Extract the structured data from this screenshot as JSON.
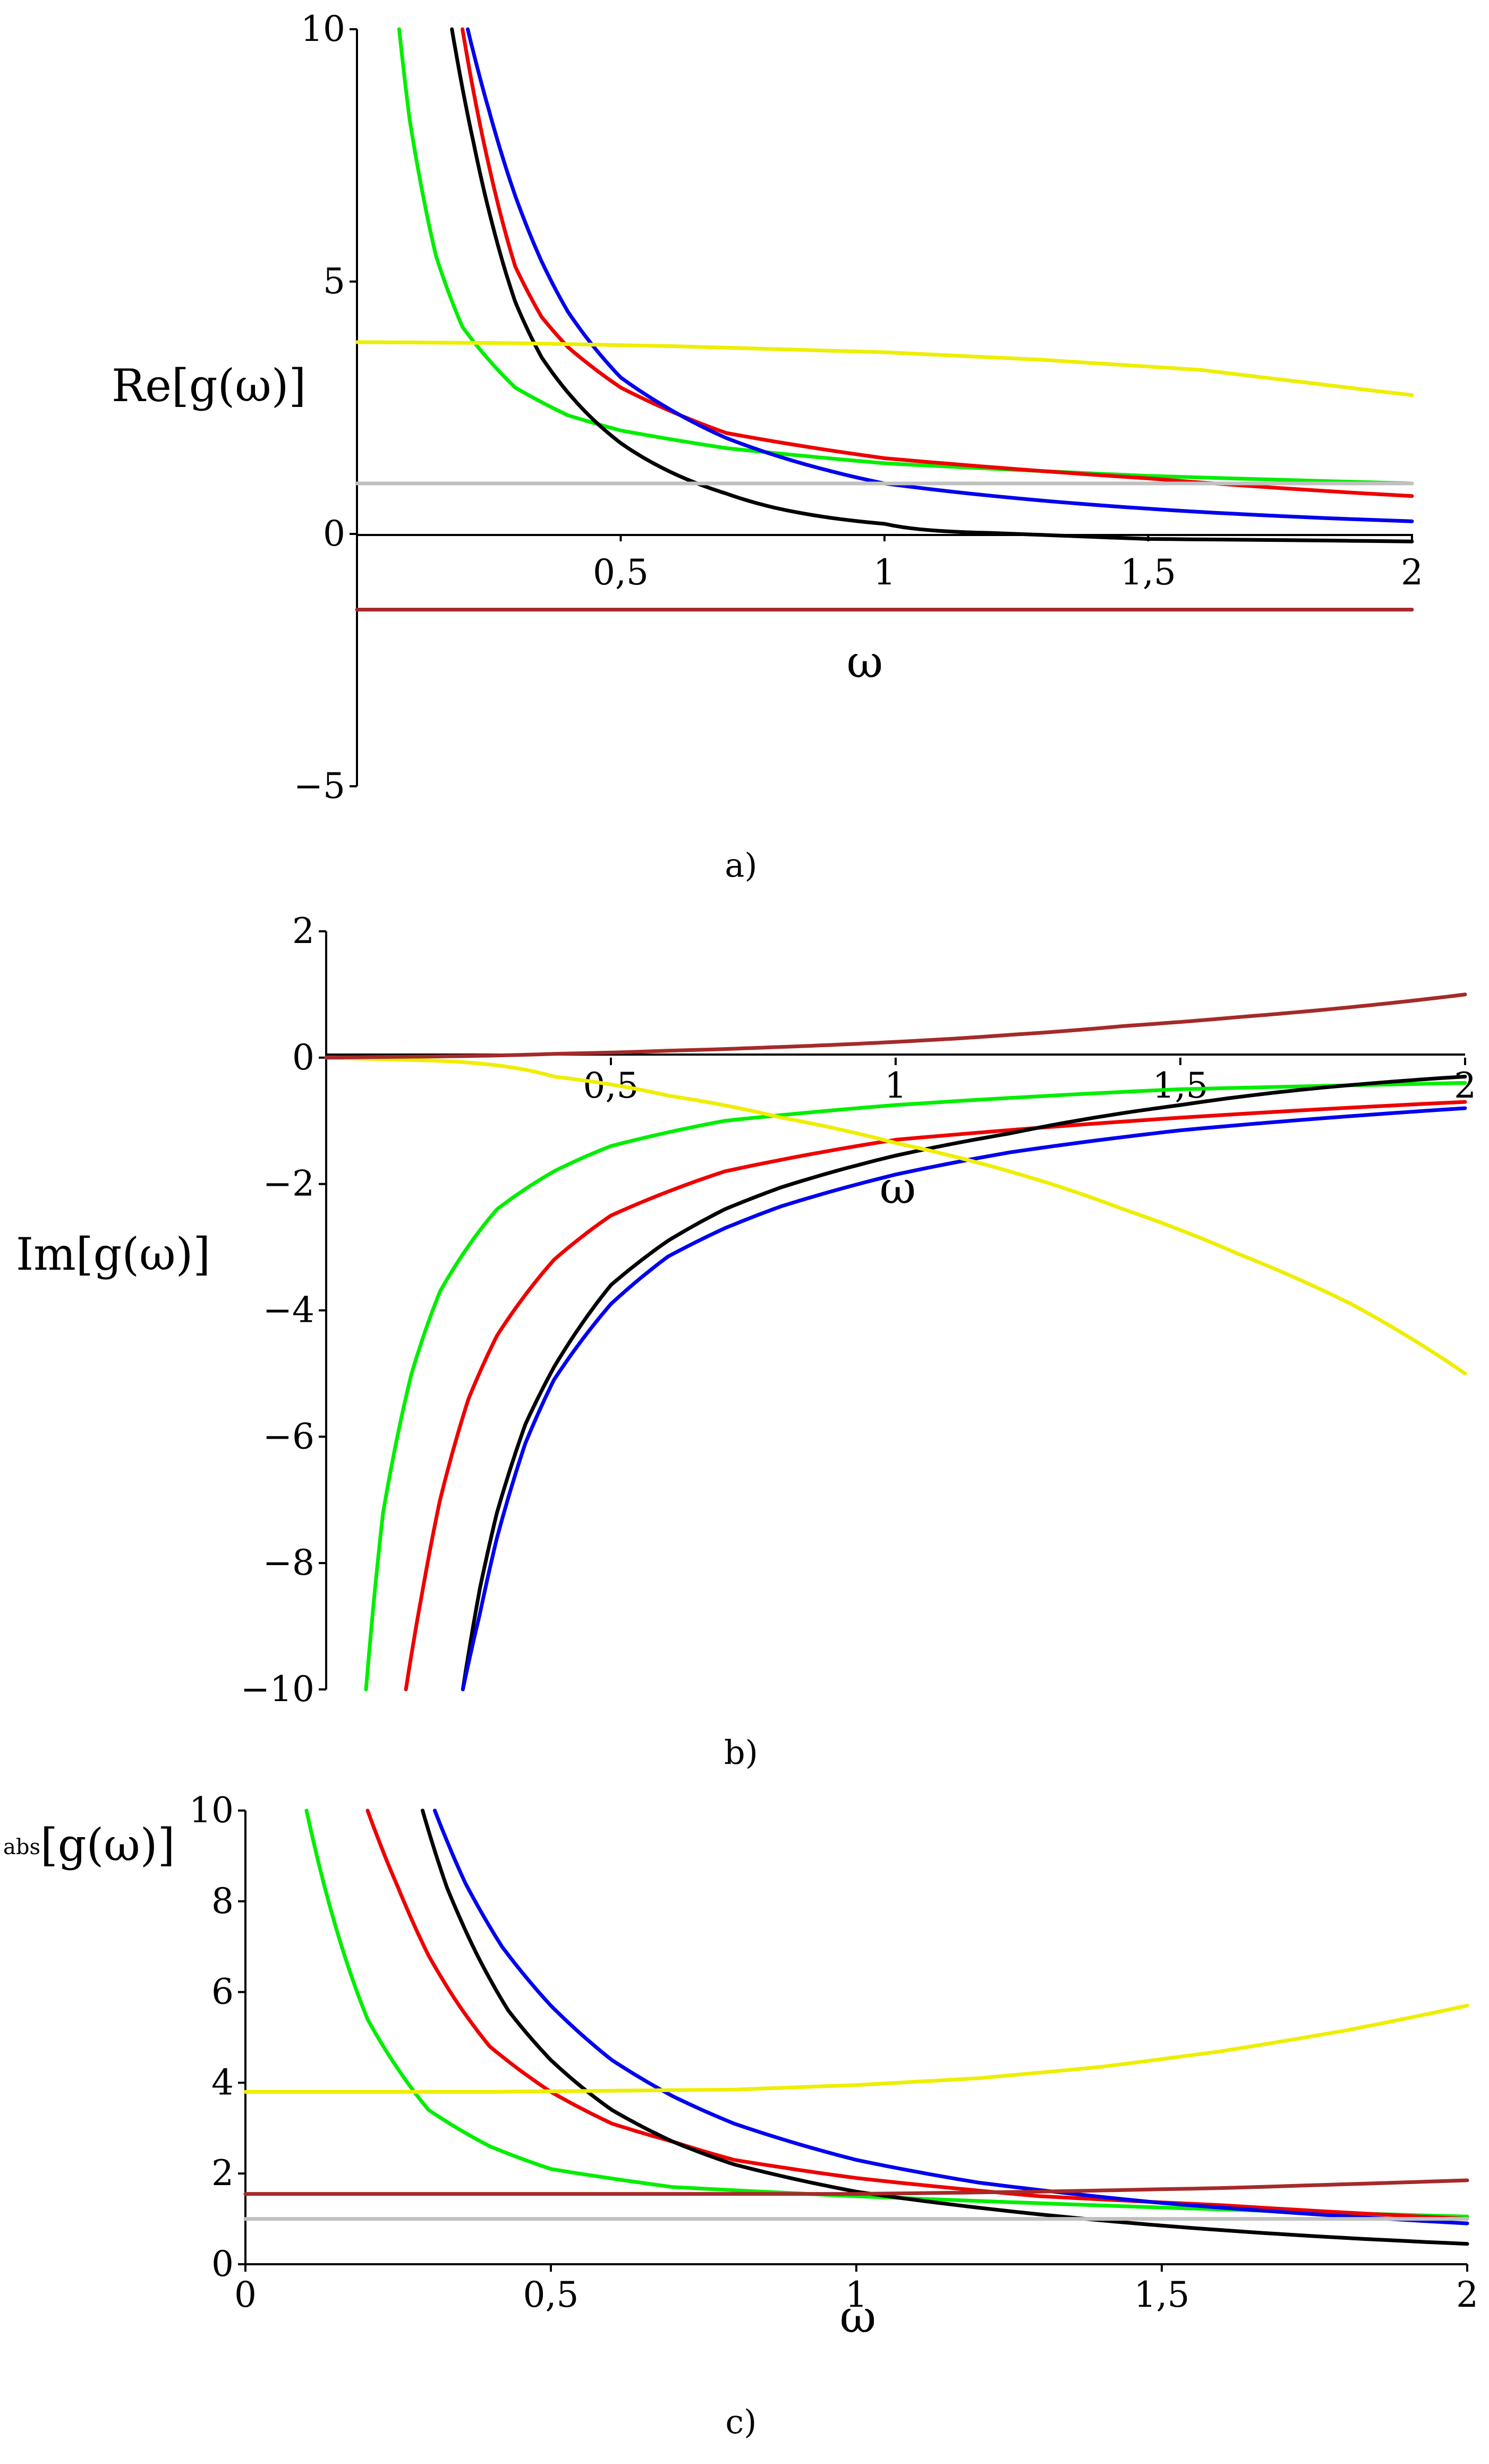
{
  "chart_data": [
    {
      "type": "line",
      "caption": "a)",
      "title": "",
      "xlabel": "ω",
      "ylabel": "Re[g(ω)]",
      "xlim": [
        0,
        2
      ],
      "ylim": [
        -5,
        10
      ],
      "xticks": [
        {
          "v": 0.5,
          "label": "0,5"
        },
        {
          "v": 1,
          "label": "1"
        },
        {
          "v": 1.5,
          "label": "1,5"
        },
        {
          "v": 2,
          "label": "2"
        }
      ],
      "yticks": [
        {
          "v": 10,
          "label": "10"
        },
        {
          "v": 5,
          "label": "5"
        },
        {
          "v": 0,
          "label": "0"
        },
        {
          "v": -5,
          "label": "−5"
        }
      ],
      "series": [
        {
          "color": "#00ee00",
          "x": [
            0.08,
            0.1,
            0.15,
            0.2,
            0.3,
            0.4,
            0.5,
            0.7,
            1.0,
            1.5,
            2.0
          ],
          "y": [
            10,
            8.2,
            5.5,
            4.1,
            2.9,
            2.35,
            2.05,
            1.7,
            1.4,
            1.15,
            1.0
          ]
        },
        {
          "color": "#ee0000",
          "x": [
            0.2,
            0.25,
            0.3,
            0.35,
            0.4,
            0.5,
            0.7,
            1.0,
            1.5,
            2.0
          ],
          "y": [
            10,
            7.3,
            5.3,
            4.3,
            3.7,
            2.9,
            2.0,
            1.5,
            1.1,
            0.75
          ]
        },
        {
          "color": "#0000ee",
          "x": [
            0.21,
            0.25,
            0.3,
            0.35,
            0.4,
            0.5,
            0.7,
            1.0,
            1.5,
            2.0
          ],
          "y": [
            10,
            8.4,
            6.7,
            5.4,
            4.4,
            3.1,
            1.9,
            1.0,
            0.5,
            0.25
          ]
        },
        {
          "color": "#000000",
          "x": [
            0.18,
            0.22,
            0.26,
            0.3,
            0.35,
            0.4,
            0.5,
            0.6,
            0.7,
            0.8,
            1.0,
            1.2,
            1.5,
            2.0
          ],
          "y": [
            10,
            7.8,
            6.0,
            4.6,
            3.5,
            2.8,
            1.8,
            1.2,
            0.8,
            0.5,
            0.2,
            0.02,
            -0.1,
            -0.15
          ]
        },
        {
          "color": "#eeee00",
          "x": [
            0,
            0.3,
            0.6,
            1.0,
            1.3,
            1.6,
            1.8,
            2.0
          ],
          "y": [
            3.8,
            3.78,
            3.72,
            3.6,
            3.45,
            3.25,
            3.0,
            2.75
          ]
        },
        {
          "color": "#c0c0c0",
          "x": [
            0,
            2.0
          ],
          "y": [
            1.0,
            1.0
          ]
        },
        {
          "color": "#a52a2a",
          "x": [
            0,
            2.0
          ],
          "y": [
            -1.5,
            -1.5
          ]
        }
      ]
    },
    {
      "type": "line",
      "caption": "b)",
      "title": "",
      "xlabel": "ω",
      "ylabel": "Im[g(ω)]",
      "xlim": [
        0,
        2
      ],
      "ylim": [
        -10,
        2
      ],
      "xticks": [
        {
          "v": 0.5,
          "label": "0,5"
        },
        {
          "v": 1,
          "label": "1"
        },
        {
          "v": 1.5,
          "label": "1,5"
        },
        {
          "v": 2,
          "label": "2"
        }
      ],
      "yticks": [
        {
          "v": 2,
          "label": "2"
        },
        {
          "v": 0,
          "label": "0"
        },
        {
          "v": -2,
          "label": "−2"
        },
        {
          "v": -4,
          "label": "−4"
        },
        {
          "v": -6,
          "label": "−6"
        },
        {
          "v": -8,
          "label": "−8"
        },
        {
          "v": -10,
          "label": "−10"
        }
      ],
      "series": [
        {
          "color": "#00ee00",
          "x": [
            0.07,
            0.1,
            0.15,
            0.2,
            0.3,
            0.4,
            0.5,
            0.7,
            1.0,
            1.5,
            2.0
          ],
          "y": [
            -10,
            -7.2,
            -5.0,
            -3.7,
            -2.4,
            -1.8,
            -1.4,
            -1.0,
            -0.75,
            -0.5,
            -0.4
          ]
        },
        {
          "color": "#ee0000",
          "x": [
            0.14,
            0.17,
            0.2,
            0.25,
            0.3,
            0.4,
            0.5,
            0.7,
            1.0,
            1.5,
            2.0
          ],
          "y": [
            -10,
            -8.4,
            -7.0,
            -5.4,
            -4.4,
            -3.2,
            -2.5,
            -1.8,
            -1.3,
            -0.95,
            -0.7
          ]
        },
        {
          "color": "#000000",
          "x": [
            0.24,
            0.27,
            0.3,
            0.35,
            0.4,
            0.5,
            0.6,
            0.7,
            0.8,
            1.0,
            1.2,
            1.5,
            2.0
          ],
          "y": [
            -10,
            -8.4,
            -7.2,
            -5.8,
            -4.9,
            -3.6,
            -2.9,
            -2.4,
            -2.05,
            -1.55,
            -1.2,
            -0.75,
            -0.3
          ]
        },
        {
          "color": "#0000ee",
          "x": [
            0.24,
            0.27,
            0.3,
            0.35,
            0.4,
            0.5,
            0.6,
            0.7,
            0.8,
            1.0,
            1.2,
            1.5,
            2.0
          ],
          "y": [
            -10,
            -8.8,
            -7.6,
            -6.1,
            -5.1,
            -3.9,
            -3.15,
            -2.7,
            -2.35,
            -1.85,
            -1.5,
            -1.15,
            -0.8
          ]
        },
        {
          "color": "#eeee00",
          "x": [
            0,
            0.2,
            0.4,
            0.6,
            0.8,
            1.0,
            1.2,
            1.4,
            1.6,
            1.8,
            2.0
          ],
          "y": [
            0,
            -0.05,
            -0.3,
            -0.6,
            -0.95,
            -1.35,
            -1.8,
            -2.4,
            -3.1,
            -3.9,
            -5.0
          ]
        },
        {
          "color": "#a52a2a",
          "x": [
            0,
            0.2,
            0.4,
            0.6,
            0.8,
            1.0,
            1.2,
            1.4,
            1.6,
            1.8,
            2.0
          ],
          "y": [
            0,
            0.02,
            0.06,
            0.11,
            0.17,
            0.25,
            0.36,
            0.5,
            0.64,
            0.8,
            1.0
          ]
        }
      ]
    },
    {
      "type": "line",
      "caption": "c)",
      "title": "",
      "xlabel": "ω",
      "ylabel": "abs[g(ω)]",
      "ylabel_prefix": "abs",
      "ylabel_main": "[g(ω)]",
      "xlim": [
        0,
        2
      ],
      "ylim": [
        0,
        10
      ],
      "xticks": [
        {
          "v": 0,
          "label": "0"
        },
        {
          "v": 0.5,
          "label": "0,5"
        },
        {
          "v": 1,
          "label": "1"
        },
        {
          "v": 1.5,
          "label": "1,5"
        },
        {
          "v": 2,
          "label": "2"
        }
      ],
      "yticks": [
        {
          "v": 10,
          "label": "10"
        },
        {
          "v": 8,
          "label": "8"
        },
        {
          "v": 6,
          "label": "6"
        },
        {
          "v": 4,
          "label": "4"
        },
        {
          "v": 2,
          "label": "2"
        },
        {
          "v": 0,
          "label": "0"
        }
      ],
      "series": [
        {
          "color": "#00ee00",
          "x": [
            0.1,
            0.13,
            0.16,
            0.2,
            0.25,
            0.3,
            0.4,
            0.5,
            0.7,
            1.0,
            1.5,
            2.0
          ],
          "y": [
            10,
            8.3,
            6.9,
            5.4,
            4.3,
            3.4,
            2.6,
            2.1,
            1.7,
            1.5,
            1.25,
            1.05
          ]
        },
        {
          "color": "#ee0000",
          "x": [
            0.2,
            0.25,
            0.3,
            0.35,
            0.4,
            0.5,
            0.6,
            0.7,
            0.8,
            1.0,
            1.3,
            1.6,
            2.0
          ],
          "y": [
            10,
            8.3,
            6.8,
            5.7,
            4.8,
            3.8,
            3.1,
            2.7,
            2.3,
            1.9,
            1.5,
            1.3,
            1.0
          ]
        },
        {
          "color": "#000000",
          "x": [
            0.29,
            0.33,
            0.38,
            0.43,
            0.5,
            0.6,
            0.7,
            0.8,
            1.0,
            1.3,
            1.6,
            2.0
          ],
          "y": [
            10,
            8.3,
            6.8,
            5.6,
            4.5,
            3.4,
            2.7,
            2.2,
            1.6,
            1.1,
            0.75,
            0.45
          ]
        },
        {
          "color": "#0000ee",
          "x": [
            0.31,
            0.36,
            0.42,
            0.5,
            0.6,
            0.7,
            0.8,
            1.0,
            1.2,
            1.5,
            2.0
          ],
          "y": [
            10,
            8.4,
            7.0,
            5.7,
            4.5,
            3.7,
            3.1,
            2.3,
            1.8,
            1.35,
            0.9
          ]
        },
        {
          "color": "#eeee00",
          "x": [
            0,
            0.4,
            0.8,
            1.0,
            1.2,
            1.4,
            1.6,
            1.8,
            2.0
          ],
          "y": [
            3.8,
            3.8,
            3.85,
            3.95,
            4.1,
            4.35,
            4.7,
            5.15,
            5.7
          ]
        },
        {
          "color": "#a52a2a",
          "x": [
            0,
            1.0,
            1.3,
            1.6,
            2.0
          ],
          "y": [
            1.55,
            1.55,
            1.6,
            1.68,
            1.85
          ]
        },
        {
          "color": "#c0c0c0",
          "x": [
            0,
            2.0
          ],
          "y": [
            1.0,
            1.0
          ]
        }
      ]
    }
  ]
}
